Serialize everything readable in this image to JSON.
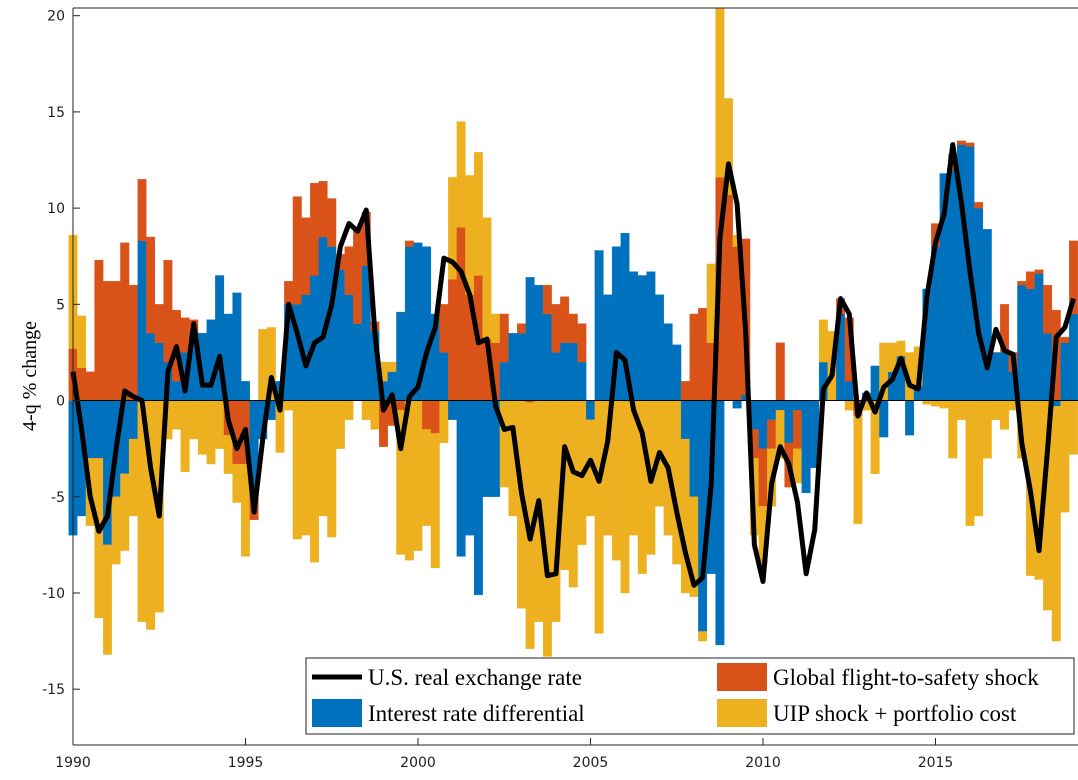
{
  "chart_data": {
    "type": "bar",
    "stacked": true,
    "ylabel": "4-q % change",
    "xlim": [
      1990,
      2019.13
    ],
    "xticks": [
      1990,
      1995,
      2000,
      2005,
      2010,
      2015
    ],
    "ylim": [
      -17.9,
      20.4
    ],
    "yticks": [
      -15,
      -10,
      -5,
      0,
      5,
      10,
      15,
      20
    ],
    "legend_location": "southeast",
    "x": [
      1990,
      1990.25,
      1990.5,
      1990.75,
      1991,
      1991.25,
      1991.5,
      1991.75,
      1992,
      1992.25,
      1992.5,
      1992.75,
      1993,
      1993.25,
      1993.5,
      1993.75,
      1994,
      1994.25,
      1994.5,
      1994.75,
      1995,
      1995.25,
      1995.5,
      1995.75,
      1996,
      1996.25,
      1996.5,
      1996.75,
      1997,
      1997.25,
      1997.5,
      1997.75,
      1998,
      1998.25,
      1998.5,
      1998.75,
      1999,
      1999.25,
      1999.5,
      1999.75,
      2000,
      2000.25,
      2000.5,
      2000.75,
      2001,
      2001.25,
      2001.5,
      2001.75,
      2002,
      2002.25,
      2002.5,
      2002.75,
      2003,
      2003.25,
      2003.5,
      2003.75,
      2004,
      2004.25,
      2004.5,
      2004.75,
      2005,
      2005.25,
      2005.5,
      2005.75,
      2006,
      2006.25,
      2006.5,
      2006.75,
      2007,
      2007.25,
      2007.5,
      2007.75,
      2008,
      2008.25,
      2008.5,
      2008.75,
      2009,
      2009.25,
      2009.5,
      2009.75,
      2010,
      2010.25,
      2010.5,
      2010.75,
      2011,
      2011.25,
      2011.5,
      2011.75,
      2012,
      2012.25,
      2012.5,
      2012.75,
      2013,
      2013.25,
      2013.5,
      2013.75,
      2014,
      2014.25,
      2014.5,
      2014.75,
      2015,
      2015.25,
      2015.5,
      2015.75,
      2016,
      2016.25,
      2016.5,
      2016.75,
      2017,
      2017.25,
      2017.5,
      2017.75,
      2018,
      2018.25,
      2018.5,
      2018.75,
      2019
    ],
    "series": [
      {
        "name": "U.S. real exchange rate",
        "type": "line",
        "color": "#000000",
        "values": [
          1.5,
          -1.5,
          -5,
          -6.8,
          -6,
          -2.5,
          0.5,
          0.2,
          0,
          -3.5,
          -6,
          1.5,
          2.8,
          0.5,
          4,
          0.8,
          0.8,
          2.3,
          -1,
          -2.5,
          -1.5,
          -5.8,
          -2,
          1.2,
          -0.5,
          5,
          3.5,
          1.8,
          3,
          3.3,
          5,
          8,
          9.2,
          8.8,
          9.9,
          3.5,
          -0.5,
          0.3,
          -2.5,
          0.2,
          0.7,
          2.5,
          3.8,
          7.4,
          7.2,
          6.7,
          5.5,
          3,
          3.2,
          -0.3,
          -1.5,
          -1.4,
          -4.8,
          -7.2,
          -5.2,
          -9.1,
          -9,
          -2.4,
          -3.7,
          -3.9,
          -3.1,
          -4.2,
          -2.1,
          2.5,
          2.1,
          -0.5,
          -1.7,
          -4.2,
          -2.7,
          -3.5,
          -5.8,
          -7.9,
          -9.6,
          -9.2,
          -4.3,
          8.4,
          12.3,
          10.2,
          3.5,
          -7.5,
          -9.4,
          -4.3,
          -2.4,
          -3.3,
          -5.3,
          -9,
          -6.7,
          0.6,
          1.3,
          5.3,
          4.5,
          -0.8,
          0.4,
          -0.6,
          0.7,
          1.1,
          2.2,
          0.8,
          0.6,
          5.4,
          8.2,
          9.7,
          13.3,
          10.3,
          6.7,
          3.5,
          1.7,
          3.7,
          2.6,
          2.4,
          -2.2,
          -4.7,
          -7.8,
          -2.5,
          3.3,
          3.8,
          5.3
        ]
      },
      {
        "name": "Interest rate differential",
        "type": "bar",
        "color": "#0072BD",
        "values": [
          -7,
          -6,
          -3,
          -3,
          -7.5,
          -5,
          -3.8,
          -2,
          8.3,
          3.5,
          3,
          2,
          1,
          2.5,
          3.5,
          3.5,
          4.2,
          6.5,
          4.5,
          5.6,
          1,
          -5,
          -2,
          -1,
          1,
          5,
          5,
          5.5,
          6.5,
          8.5,
          8,
          6.8,
          5.5,
          4,
          7,
          3.6,
          1,
          1.5,
          4.6,
          8,
          8.2,
          8,
          4.5,
          2.5,
          -1,
          -8.1,
          -7,
          -10.1,
          -5,
          -5,
          2,
          3.5,
          3.5,
          6.4,
          6,
          4.5,
          2.5,
          3,
          3,
          2,
          -1,
          7.8,
          5.5,
          8,
          8.7,
          6.7,
          6.5,
          6.7,
          5.5,
          4,
          2.9,
          -2,
          -5,
          -12,
          -9,
          -12.7,
          0,
          -0.4,
          0.3,
          -1.5,
          -2.5,
          -1,
          -0.5,
          -2.2,
          -0.5,
          -4.8,
          -3.5,
          2,
          0,
          4.5,
          1,
          0,
          0.4,
          1.8,
          -1.9,
          1.5,
          2.3,
          -1.8,
          0.8,
          5.8,
          8,
          11.8,
          12,
          13.3,
          13.2,
          10,
          8.9,
          2.5,
          2.5,
          1.5,
          6,
          5.8,
          6.6,
          3.5,
          -0.3,
          3,
          4.5
        ]
      },
      {
        "name": "Global flight-to-safety shock",
        "type": "bar",
        "color": "#D95319",
        "values": [
          2.7,
          1.7,
          1.5,
          7.3,
          6.2,
          6.2,
          8.2,
          6,
          3.2,
          5,
          2,
          5.3,
          3.7,
          1.8,
          0.7,
          0,
          0,
          0,
          -1.8,
          -3.3,
          -3.3,
          -1.2,
          0,
          0,
          0,
          1.2,
          5.6,
          4,
          4.8,
          2.9,
          2.5,
          0.8,
          2.5,
          5,
          2.8,
          0.5,
          -2.4,
          -1.3,
          -0.5,
          0.3,
          0,
          -1.5,
          -1.7,
          2.5,
          6.3,
          9,
          5.5,
          6.5,
          3.2,
          3,
          2.5,
          0,
          0.5,
          -0.1,
          0,
          1.5,
          2.5,
          2.4,
          1.5,
          2,
          0,
          0,
          0,
          0,
          0,
          0,
          0,
          0,
          0,
          0,
          0,
          1,
          4.5,
          4.8,
          3,
          11.6,
          10.7,
          8,
          8.1,
          -1.5,
          -3,
          -1.5,
          3,
          -2.3,
          -2,
          0,
          0,
          0,
          0,
          0.8,
          3.3,
          -0.8,
          0,
          0,
          0,
          0,
          0,
          0,
          0,
          0,
          1.2,
          0,
          0.8,
          0.2,
          0.2,
          0.3,
          0,
          0,
          2.5,
          1,
          0.2,
          0.9,
          0.2,
          2.5,
          4.7,
          0.3,
          3.8
        ]
      },
      {
        "name": "UIP shock + portfolio cost",
        "type": "bar",
        "color": "#EDB120",
        "values": [
          5.9,
          2.7,
          -3.5,
          -8.3,
          -5.7,
          -3.5,
          -4,
          -4,
          -11.5,
          -11.9,
          -11,
          -2,
          -1.5,
          -3.7,
          -2,
          -2.8,
          -3.3,
          -2.5,
          -2,
          -2,
          -4.8,
          0,
          3.7,
          3.8,
          -2.7,
          -0.5,
          -7.2,
          -7,
          -8.4,
          -6,
          -7.1,
          -2.5,
          -1,
          0,
          -1,
          -1.5,
          1,
          0.5,
          -7.5,
          -8.3,
          -7.8,
          -5,
          -7,
          -2.2,
          5.3,
          5.5,
          6.2,
          6.4,
          6.3,
          1.5,
          -4.5,
          -6,
          -10.8,
          -12.8,
          -11.5,
          -13.3,
          -11.5,
          -8.8,
          -9.7,
          -7.5,
          -5,
          -12.1,
          -7,
          -8.3,
          -10,
          -7,
          -9,
          -8,
          -5.5,
          -7,
          -8.5,
          -8,
          -5.2,
          -0.5,
          4.1,
          8.8,
          5,
          0.6,
          0,
          -4,
          -3,
          -3,
          -2.5,
          0,
          -1.8,
          0,
          0,
          2.2,
          3.6,
          0,
          -0.5,
          -5.6,
          -0.5,
          -3.8,
          3,
          1.5,
          0.8,
          2.5,
          2,
          -0.2,
          -0.3,
          -0.4,
          -3,
          -1,
          -6.5,
          -6,
          -3,
          -1,
          -1.5,
          -0.5,
          -3,
          -9.1,
          -9.3,
          -10.9,
          -12.2,
          -5.8,
          -2.8
        ]
      }
    ]
  }
}
